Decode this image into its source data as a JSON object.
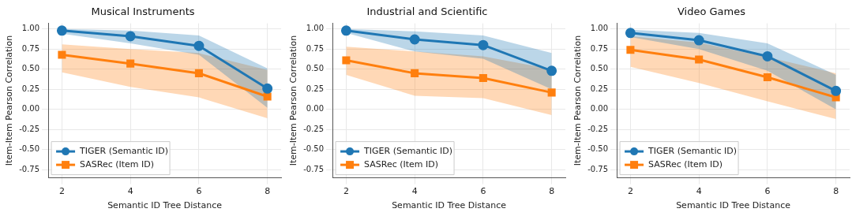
{
  "chart_data": [
    {
      "type": "line",
      "title": "Musical Instruments",
      "xlabel": "Semantic ID Tree Distance",
      "ylabel": "Item-Item Pearson Correlation",
      "x": [
        2,
        4,
        6,
        8
      ],
      "xlim": [
        1.6,
        8.4
      ],
      "xticks": [
        2,
        4,
        6,
        8
      ],
      "ylim": [
        -0.85,
        1.07
      ],
      "yticks": [
        {
          "value": -0.75,
          "label": "-0.75"
        },
        {
          "value": -0.5,
          "label": "-0.50"
        },
        {
          "value": -0.25,
          "label": "-0.25"
        },
        {
          "value": 0,
          "label": "0.00"
        },
        {
          "value": 0.25,
          "label": "0.25"
        },
        {
          "value": 0.5,
          "label": "0.50"
        },
        {
          "value": 0.75,
          "label": "0.75"
        },
        {
          "value": 1,
          "label": "1.00"
        }
      ],
      "grid": true,
      "legend": "bottom left",
      "line_style": "solid",
      "series": [
        {
          "name": "TIGER (Semantic ID)",
          "color": "#1f77b4",
          "marker": "circle",
          "values": [
            0.98,
            0.91,
            0.79,
            0.26
          ],
          "lower": [
            0.94,
            0.82,
            0.68,
            0.02
          ],
          "upper": [
            1.0,
            0.98,
            0.92,
            0.51
          ]
        },
        {
          "name": "SASRec (Item ID)",
          "color": "#ff7f0e",
          "marker": "square",
          "values": [
            0.68,
            0.57,
            0.45,
            0.16
          ],
          "lower": [
            0.46,
            0.28,
            0.15,
            -0.11
          ],
          "upper": [
            0.81,
            0.75,
            0.7,
            0.49
          ]
        }
      ]
    },
    {
      "type": "line",
      "title": "Industrial and Scientific",
      "xlabel": "Semantic ID Tree Distance",
      "ylabel": "Item-Item Pearson Correlation",
      "x": [
        2,
        4,
        6,
        8
      ],
      "xlim": [
        1.6,
        8.4
      ],
      "xticks": [
        2,
        4,
        6,
        8
      ],
      "ylim": [
        -0.85,
        1.07
      ],
      "yticks": [
        {
          "value": -0.75,
          "label": "-0.75"
        },
        {
          "value": -0.5,
          "label": "-0.50"
        },
        {
          "value": -0.25,
          "label": "-0.25"
        },
        {
          "value": 0,
          "label": "0.00"
        },
        {
          "value": 0.25,
          "label": "0.25"
        },
        {
          "value": 0.5,
          "label": "0.50"
        },
        {
          "value": 0.75,
          "label": "0.75"
        },
        {
          "value": 1,
          "label": "1.00"
        }
      ],
      "grid": true,
      "legend": "bottom left",
      "line_style": "solid",
      "series": [
        {
          "name": "TIGER (Semantic ID)",
          "color": "#1f77b4",
          "marker": "circle",
          "values": [
            0.98,
            0.87,
            0.8,
            0.48
          ],
          "lower": [
            0.95,
            0.72,
            0.63,
            0.25
          ],
          "upper": [
            1.0,
            0.97,
            0.92,
            0.7
          ]
        },
        {
          "name": "SASRec (Item ID)",
          "color": "#ff7f0e",
          "marker": "square",
          "values": [
            0.61,
            0.45,
            0.39,
            0.21
          ],
          "lower": [
            0.43,
            0.17,
            0.14,
            -0.07
          ],
          "upper": [
            0.78,
            0.72,
            0.66,
            0.5
          ]
        }
      ]
    },
    {
      "type": "line",
      "title": "Video Games",
      "xlabel": "Semantic ID Tree Distance",
      "ylabel": "Item-Item Pearson Correlation",
      "x": [
        2,
        4,
        6,
        8
      ],
      "xlim": [
        1.6,
        8.4
      ],
      "xticks": [
        2,
        4,
        6,
        8
      ],
      "ylim": [
        -0.85,
        1.07
      ],
      "yticks": [
        {
          "value": -0.75,
          "label": "-0.75"
        },
        {
          "value": -0.5,
          "label": "-0.50"
        },
        {
          "value": -0.25,
          "label": "-0.25"
        },
        {
          "value": 0,
          "label": "0.00"
        },
        {
          "value": 0.25,
          "label": "0.25"
        },
        {
          "value": 0.5,
          "label": "0.50"
        },
        {
          "value": 0.75,
          "label": "0.75"
        },
        {
          "value": 1,
          "label": "1.00"
        }
      ],
      "grid": true,
      "legend": "bottom left",
      "line_style": "solid",
      "series": [
        {
          "name": "TIGER (Semantic ID)",
          "color": "#1f77b4",
          "marker": "circle",
          "values": [
            0.95,
            0.86,
            0.66,
            0.23
          ],
          "lower": [
            0.9,
            0.75,
            0.48,
            0.0
          ],
          "upper": [
            0.99,
            0.95,
            0.82,
            0.43
          ]
        },
        {
          "name": "SASRec (Item ID)",
          "color": "#ff7f0e",
          "marker": "square",
          "values": [
            0.74,
            0.62,
            0.4,
            0.15
          ],
          "lower": [
            0.53,
            0.33,
            0.1,
            -0.12
          ],
          "upper": [
            0.91,
            0.83,
            0.65,
            0.45
          ]
        }
      ]
    }
  ]
}
